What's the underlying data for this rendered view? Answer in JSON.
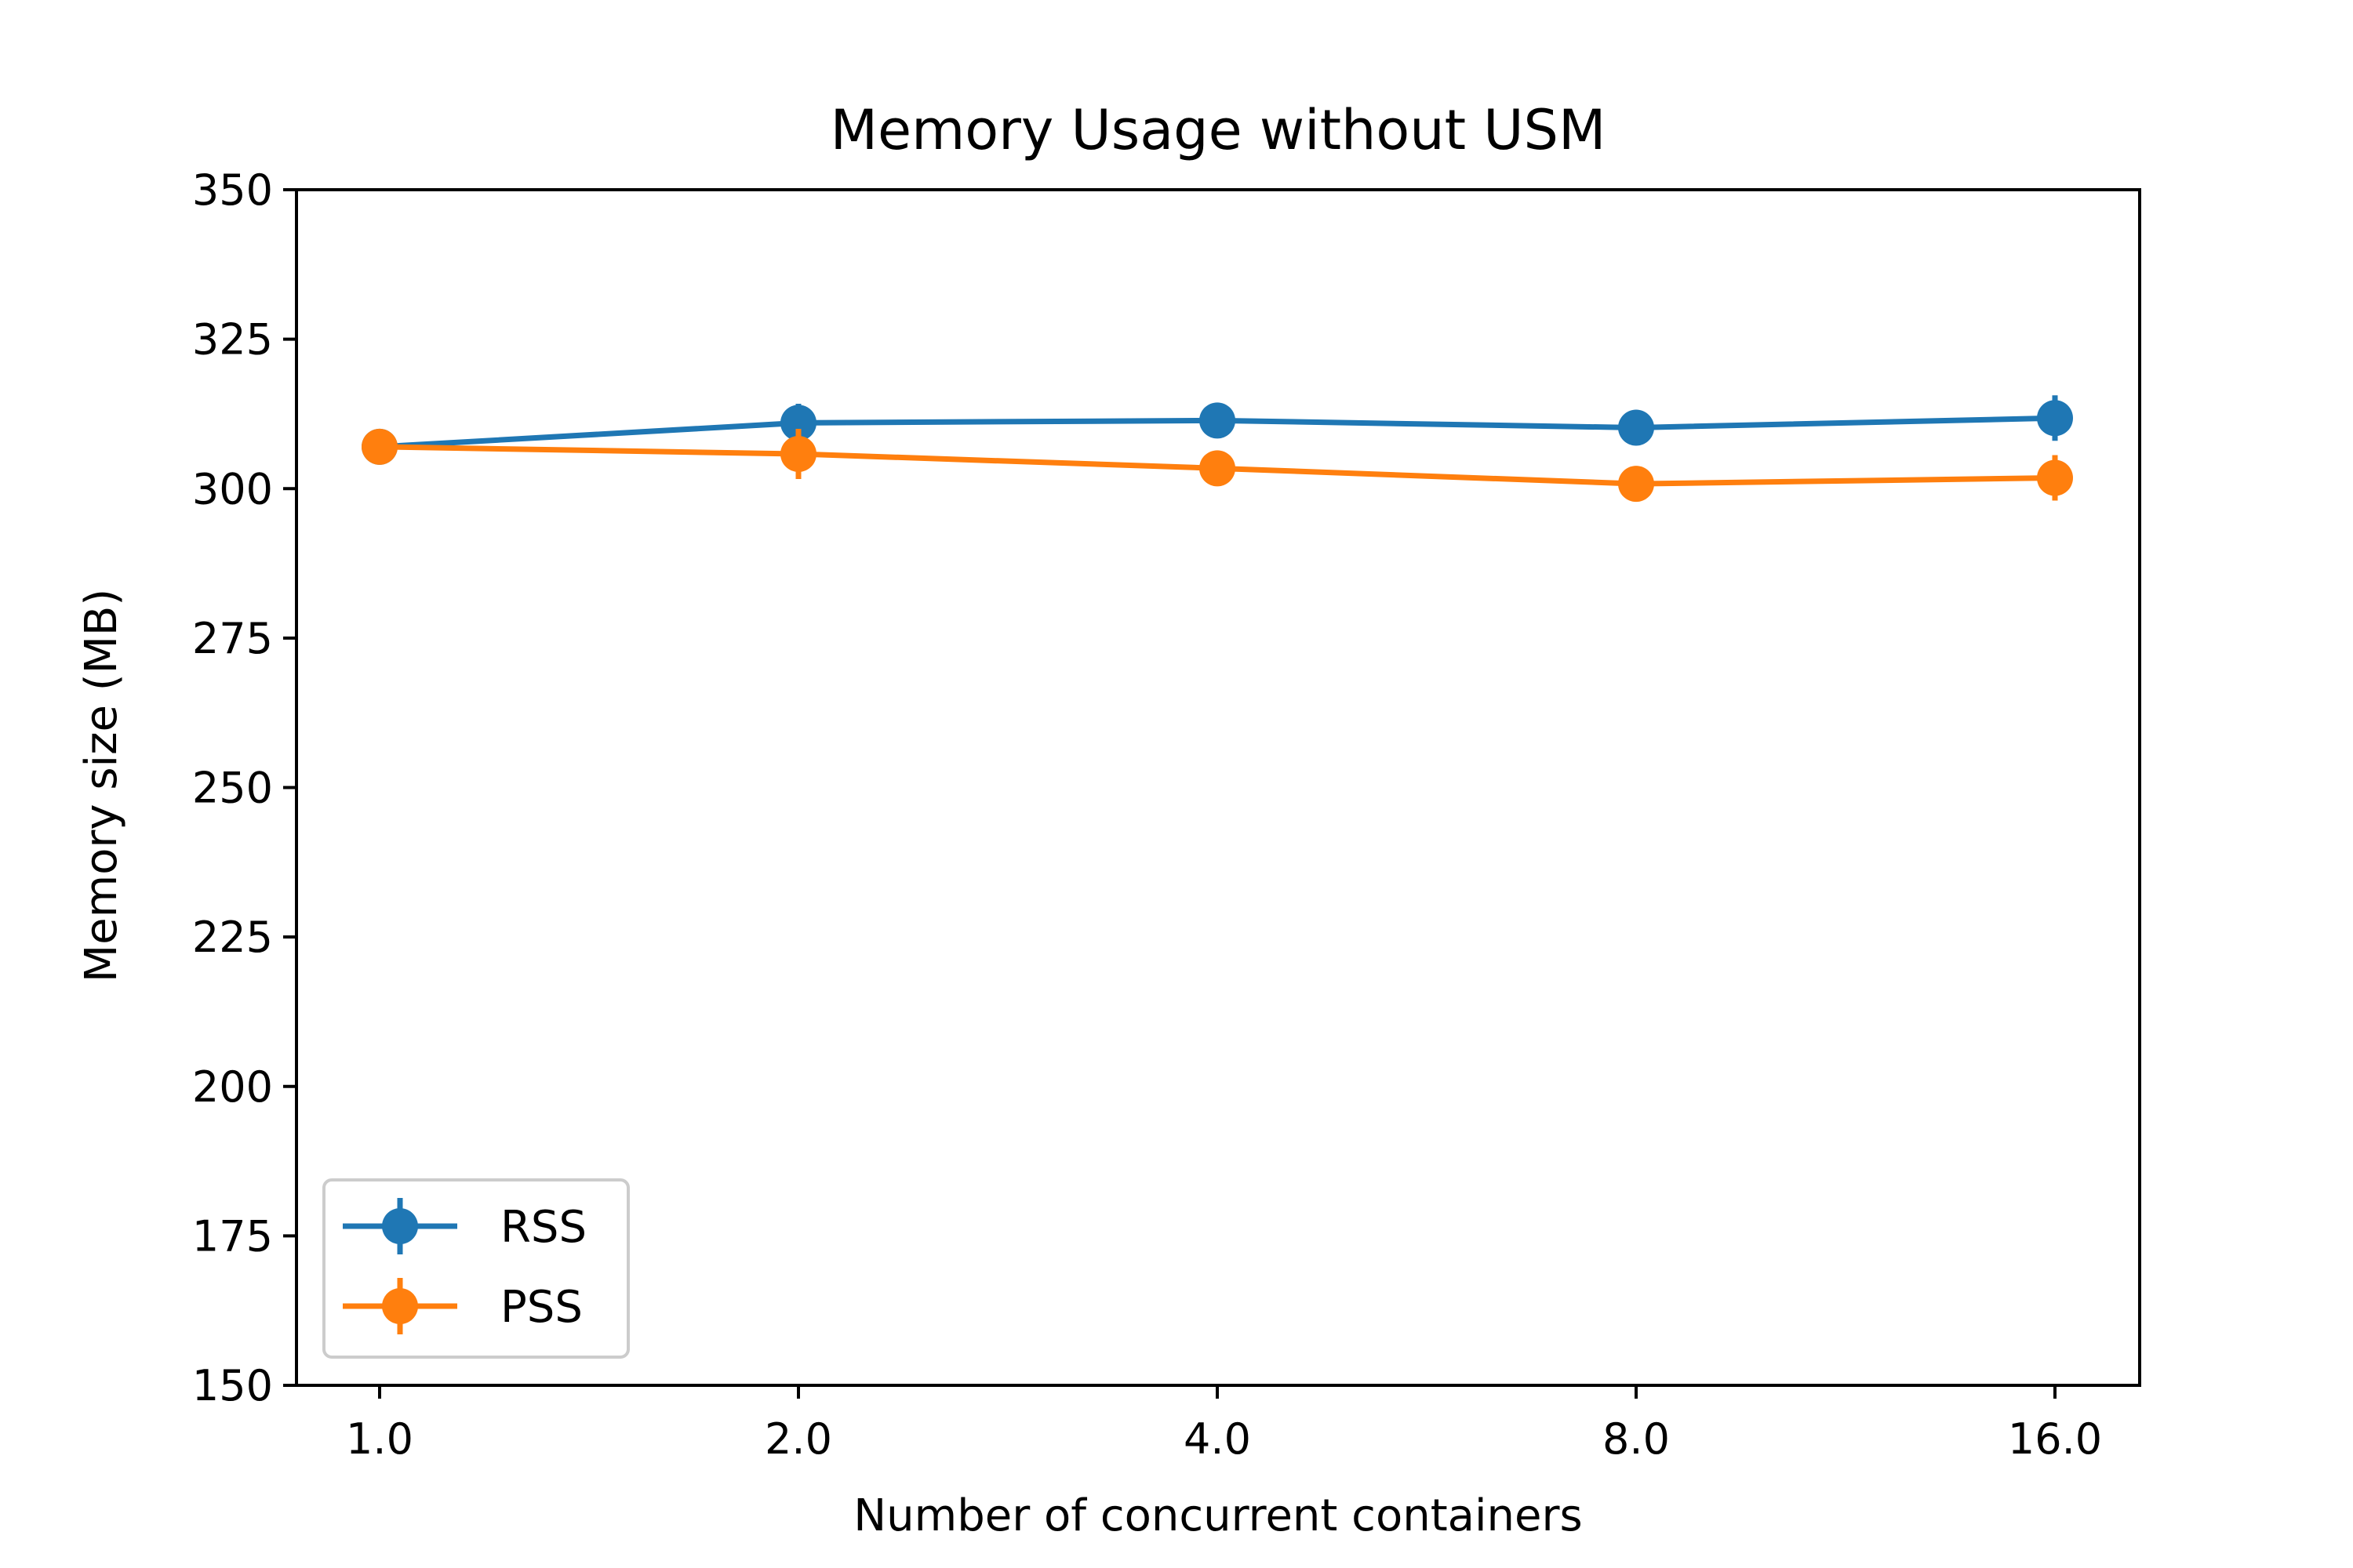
{
  "chart_data": {
    "type": "line",
    "title": "Memory Usage without USM",
    "xlabel": "Number of concurrent containers",
    "ylabel": "Memory size (MB)",
    "categories": [
      "1.0",
      "2.0",
      "4.0",
      "8.0",
      "16.0"
    ],
    "ylim": [
      150,
      350
    ],
    "yticks": [
      "150",
      "175",
      "200",
      "225",
      "250",
      "275",
      "300",
      "325",
      "350"
    ],
    "grid": false,
    "legend_position": "lower-left",
    "series": [
      {
        "name": "RSS",
        "color": "#1f77b4",
        "marker": "circle",
        "values": [
          307.0,
          311.0,
          311.4,
          310.2,
          311.8
        ],
        "errors": [
          0.6,
          3.2,
          1.6,
          1.6,
          3.8
        ]
      },
      {
        "name": "PSS",
        "color": "#ff7f0e",
        "marker": "circle",
        "values": [
          307.0,
          305.8,
          303.4,
          300.8,
          301.8
        ],
        "errors": [
          0.6,
          4.2,
          1.6,
          1.6,
          3.8
        ]
      }
    ]
  }
}
